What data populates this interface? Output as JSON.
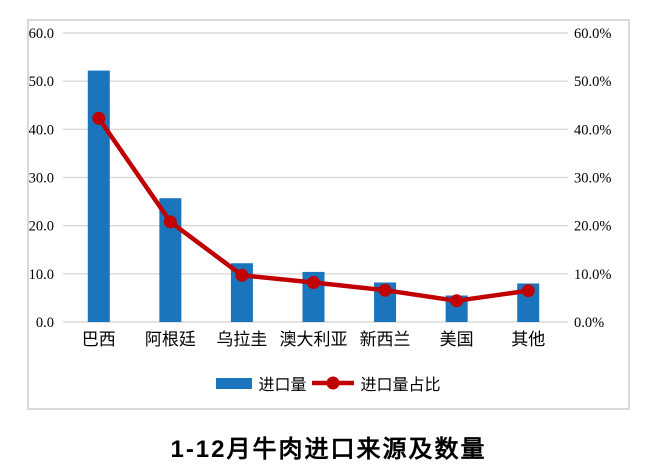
{
  "chart_data": {
    "type": "combo-bar-line",
    "title": "1-12月牛肉进口来源及数量",
    "categories": [
      "巴西",
      "阿根廷",
      "乌拉圭",
      "澳大利亚",
      "新西兰",
      "美国",
      "其他"
    ],
    "series": [
      {
        "name": "进口量",
        "type": "bar",
        "axis": "left",
        "values": [
          52.2,
          25.7,
          12.2,
          10.4,
          8.2,
          5.5,
          8.0
        ]
      },
      {
        "name": "进口量占比",
        "type": "line",
        "axis": "right",
        "unit": "%",
        "values": [
          42.3,
          20.8,
          9.7,
          8.2,
          6.6,
          4.4,
          6.5
        ]
      }
    ],
    "left_axis": {
      "min": 0,
      "max": 60,
      "step": 10,
      "tick_labels": [
        "0.0",
        "10.0",
        "20.0",
        "30.0",
        "40.0",
        "50.0",
        "60.0"
      ]
    },
    "right_axis": {
      "min": 0,
      "max": 60,
      "step": 10,
      "tick_labels": [
        "0.0%",
        "10.0%",
        "20.0%",
        "30.0%",
        "40.0%",
        "50.0%",
        "60.0%"
      ]
    },
    "grid": true,
    "legend_position": "bottom"
  },
  "colors": {
    "bar": "#1B75BC",
    "line": "#C00000",
    "grid": "#D9D9D9",
    "frame_border": "#D9D9D9",
    "text": "#000000",
    "background": "#FFFFFF"
  }
}
